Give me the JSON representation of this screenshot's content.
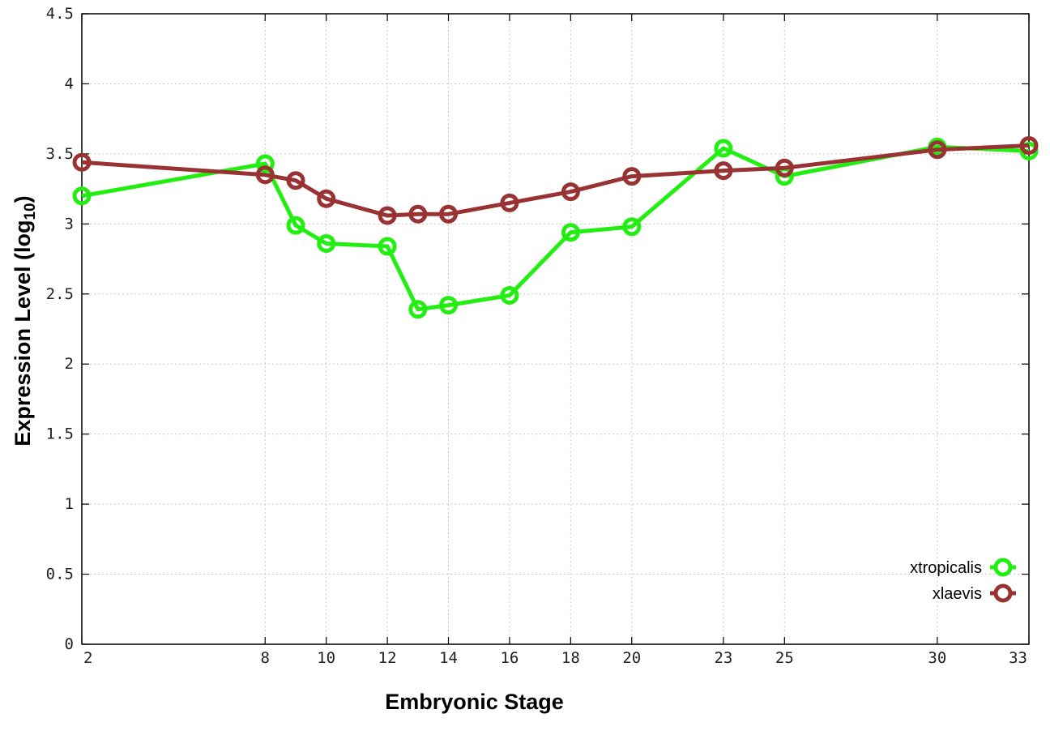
{
  "chart_data": {
    "type": "line",
    "xlabel": "Embryonic Stage",
    "ylabel_main": "Expression Level (log",
    "ylabel_sub": "10",
    "ylabel_close": ")",
    "xlim": [
      2,
      33
    ],
    "ylim": [
      0,
      4.5
    ],
    "x_ticks": [
      2,
      8,
      10,
      12,
      14,
      16,
      18,
      20,
      23,
      25,
      30,
      33
    ],
    "x_tick_labels": [
      "2",
      "8",
      "10",
      "12",
      "14",
      "16",
      "18",
      "20",
      "23",
      "25",
      "30",
      "33"
    ],
    "y_ticks": [
      0,
      0.5,
      1,
      1.5,
      2,
      2.5,
      3,
      3.5,
      4,
      4.5
    ],
    "y_tick_labels": [
      "0",
      "0.5",
      "1",
      "1.5",
      "2",
      "2.5",
      "3",
      "3.5",
      "4",
      "4.5"
    ],
    "grid": true,
    "legend_position": "bottom-right",
    "series": [
      {
        "name": "xtropicalis",
        "color": "#22ee11",
        "x": [
          2,
          8,
          9,
          10,
          12,
          13,
          14,
          16,
          18,
          20,
          23,
          25,
          30,
          33
        ],
        "y": [
          3.2,
          3.43,
          2.99,
          2.86,
          2.84,
          2.39,
          2.42,
          2.49,
          2.94,
          2.98,
          3.54,
          3.34,
          3.55,
          3.52
        ]
      },
      {
        "name": "xlaevis",
        "color": "#993333",
        "x": [
          2,
          8,
          9,
          10,
          12,
          13,
          14,
          16,
          18,
          20,
          23,
          25,
          30,
          33
        ],
        "y": [
          3.44,
          3.35,
          3.31,
          3.18,
          3.06,
          3.07,
          3.07,
          3.15,
          3.23,
          3.34,
          3.38,
          3.4,
          3.53,
          3.56
        ]
      }
    ]
  }
}
